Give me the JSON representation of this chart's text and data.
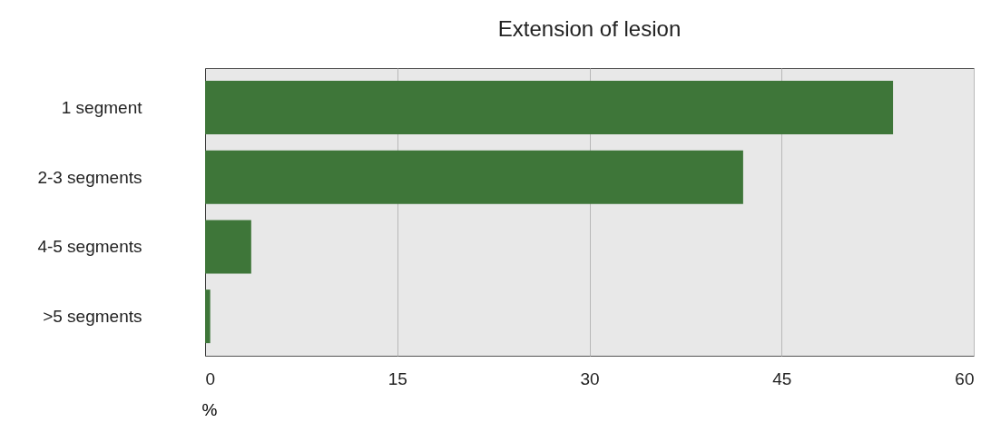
{
  "chart_data": {
    "type": "bar",
    "orientation": "horizontal",
    "title": "Extension of lesion",
    "xlabel": "%",
    "categories": [
      "1 segment",
      "2-3 segments",
      "4-5 segments",
      ">5 segments"
    ],
    "values": [
      53.7,
      42.0,
      3.6,
      0.4
    ],
    "color": "#3e7639",
    "xlim": [
      0,
      60
    ],
    "xticks": [
      0,
      15,
      30,
      45,
      60
    ],
    "grid": "x"
  }
}
